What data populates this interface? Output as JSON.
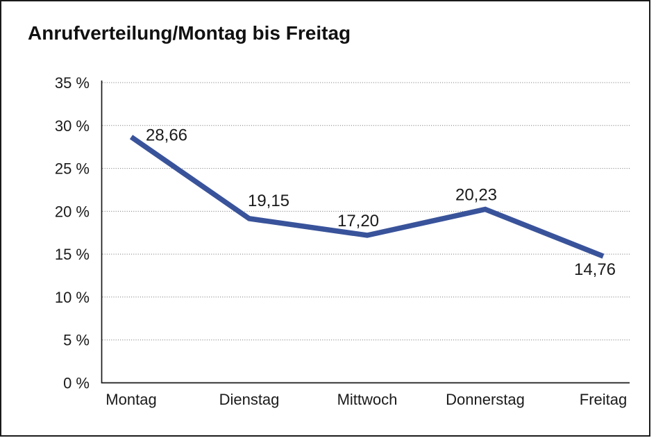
{
  "frame": {
    "background": "#ffffff",
    "border_color": "#1a1a1a"
  },
  "title": "Anrufverteilung/Montag bis Freitag",
  "chart_data": {
    "type": "line",
    "title": "Anrufverteilung/Montag bis Freitag",
    "categories": [
      "Montag",
      "Dienstag",
      "Mittwoch",
      "Donnerstag",
      "Freitag"
    ],
    "series": [
      {
        "name": "Anrufverteilung",
        "values": [
          28.66,
          19.15,
          17.2,
          20.23,
          14.76
        ],
        "point_labels": [
          "28,66",
          "19,15",
          "17,20",
          "20,23",
          "14,76"
        ],
        "color": "#39539B"
      }
    ],
    "xlabel": "",
    "ylabel": "",
    "ylim": [
      0,
      35
    ],
    "y_tick_step": 5,
    "y_tick_labels": [
      "0 %",
      "5 %",
      "10 %",
      "15 %",
      "20 %",
      "25 %",
      "30 %",
      "35 %"
    ],
    "grid": {
      "horizontal": true,
      "style": "dotted",
      "color": "#6e6e6e"
    },
    "legend": "none",
    "axis_color": "#1a1a1a",
    "label_color": "#1a1a1a"
  }
}
